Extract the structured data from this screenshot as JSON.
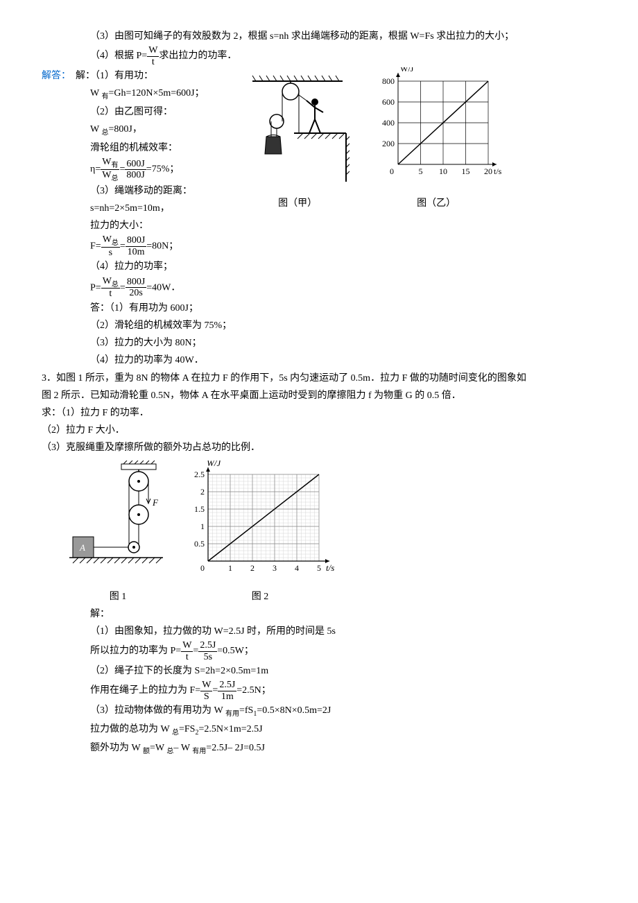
{
  "part3_intro": "（3）由图可知绳子的有效股数为 2，根据 s=nh 求出绳端移动的距离，根据 W=Fs 求出拉力的大小；",
  "part4_intro_a": "（4）根据 P=",
  "part4_intro_frac_num": "W",
  "part4_intro_frac_den": "t",
  "part4_intro_b": "求出拉力的功率．",
  "answer_label": "解答：",
  "sol_l1": "解：（1）有用功：",
  "sol_l2": "W ",
  "sol_l2_sub": "有",
  "sol_l2b": "=Gh=120N×5m=600J；",
  "sol_l3": "（2）由乙图可得：",
  "sol_l4a": "W ",
  "sol_l4_sub": "总",
  "sol_l4b": "=800J，",
  "sol_l5": "滑轮组的机械效率：",
  "sol_l6a": "η=",
  "sol_l6_num_a": "W",
  "sol_l6_num_sub": "有",
  "sol_l6_den_a": "W",
  "sol_l6_den_sub": "总",
  "sol_l6_eq": "=",
  "sol_l6_num2": "600J",
  "sol_l6_den2": "800J",
  "sol_l6b": "=75%；",
  "sol_l7": "（3）绳端移动的距离：",
  "sol_l8": "s=nh=2×5m=10m，",
  "sol_l9": "拉力的大小：",
  "sol_l10a": "F=",
  "sol_l10_num": "W",
  "sol_l10_num_sub": "总",
  "sol_l10_den": "s",
  "sol_l10_eq": "=",
  "sol_l10_num2": "800J",
  "sol_l10_den2": "10m",
  "sol_l10b": "=80N；",
  "sol_l11": "（4）拉力的功率；",
  "sol_l12a": "P=",
  "sol_l12_num": "W",
  "sol_l12_num_sub": "总",
  "sol_l12_den": "t",
  "sol_l12_eq": "=",
  "sol_l12_num2": "800J",
  "sol_l12_den2": "20s",
  "sol_l12b": "=40W．",
  "ans_l1": "答：（1）有用功为 600J；",
  "ans_l2": "（2）滑轮组的机械效率为 75%；",
  "ans_l3": "（3）拉力的大小为 80N；",
  "ans_l4": "（4）拉力的功率为 40W．",
  "fig_jia_caption": "图（甲）",
  "fig_yi_caption": "图（乙）",
  "chart_yi": {
    "ylabel": "W/J",
    "xlabel": "t/s",
    "yticks": [
      200,
      400,
      600,
      800
    ],
    "xticks": [
      5,
      10,
      15,
      20
    ],
    "line_end": [
      20,
      800
    ]
  },
  "p3_l1": "3．如图 1 所示，重为 8N 的物体 A 在拉力 F 的作用下，5s 内匀速运动了 0.5m．拉力 F 做的功随时间变化的图象如",
  "p3_l2": "图 2 所示．已知动滑轮重 0.5N，物体 A 在水平桌面上运动时受到的摩擦阻力 f 为物重 G 的 0.5 倍．",
  "p3_l3": "求：（1）拉力 F 的功率．",
  "p3_l4": "（2）拉力 F 大小．",
  "p3_l5": "（3）克服绳重及摩擦所做的额外功占总功的比例．",
  "fig1_caption": "图 1",
  "fig2_caption": "图 2",
  "chart2": {
    "ylabel": "W/J",
    "xlabel": "t/s",
    "yticks": [
      0.5,
      1.0,
      1.5,
      2.0,
      2.5
    ],
    "xticks": [
      1,
      2,
      3,
      4,
      5
    ],
    "line_end": [
      5,
      2.5
    ]
  },
  "p3sol_label": "解：",
  "p3sol_l1": "（1）由图象知，拉力做的功 W=2.5J 时，所用的时间是 5s",
  "p3sol_l2a": "所以拉力的功率为 P=",
  "p3sol_l2_num": "W",
  "p3sol_l2_den": "t",
  "p3sol_l2_eq": "=",
  "p3sol_l2_num2": "2.5J",
  "p3sol_l2_den2": "5s",
  "p3sol_l2b": "=0.5W；",
  "p3sol_l3": "（2）绳子拉下的长度为 S=2h=2×0.5m=1m",
  "p3sol_l4a": "作用在绳子上的拉力为 F=",
  "p3sol_l4_num": "W",
  "p3sol_l4_den": "S",
  "p3sol_l4_eq": "=",
  "p3sol_l4_num2": "2.5J",
  "p3sol_l4_den2": "1m",
  "p3sol_l4b": "=2.5N；",
  "p3sol_l5a": "（3）拉动物体做的有用功为 W ",
  "p3sol_l5_sub": "有用",
  "p3sol_l5b": "=fS",
  "p3sol_l5_sub2": "1",
  "p3sol_l5c": "=0.5×8N×0.5m=2J",
  "p3sol_l6a": "拉力做的总功为 W ",
  "p3sol_l6_sub": "总",
  "p3sol_l6b": "=FS",
  "p3sol_l6_sub2": "2",
  "p3sol_l6c": "=2.5N×1m=2.5J",
  "p3sol_l7a": "额外功为 W ",
  "p3sol_l7_sub": "额",
  "p3sol_l7b": "=W ",
  "p3sol_l7_sub2": "总",
  "p3sol_l7c": "– W ",
  "p3sol_l7_sub3": "有用",
  "p3sol_l7d": "=2.5J– 2J=0.5J"
}
